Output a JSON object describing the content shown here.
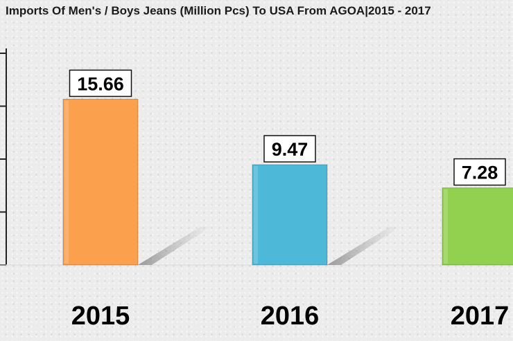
{
  "title": "Imports Of Men's / Boys Jeans (Million Pcs) To USA From AGOA|2015 - 2017",
  "chart_data": {
    "type": "bar",
    "title": "Imports Of Men's / Boys Jeans (Million Pcs) To USA From AGOA|2015 - 2017",
    "categories": [
      "2015",
      "2016",
      "2017"
    ],
    "values": [
      15.66,
      9.47,
      7.28
    ],
    "value_labels": [
      "15.66",
      "9.47",
      "7.28"
    ],
    "colors": [
      "#fba04d",
      "#4db8d8",
      "#92d050"
    ],
    "ylim": [
      0,
      20
    ],
    "grid": false,
    "legend": "none"
  }
}
